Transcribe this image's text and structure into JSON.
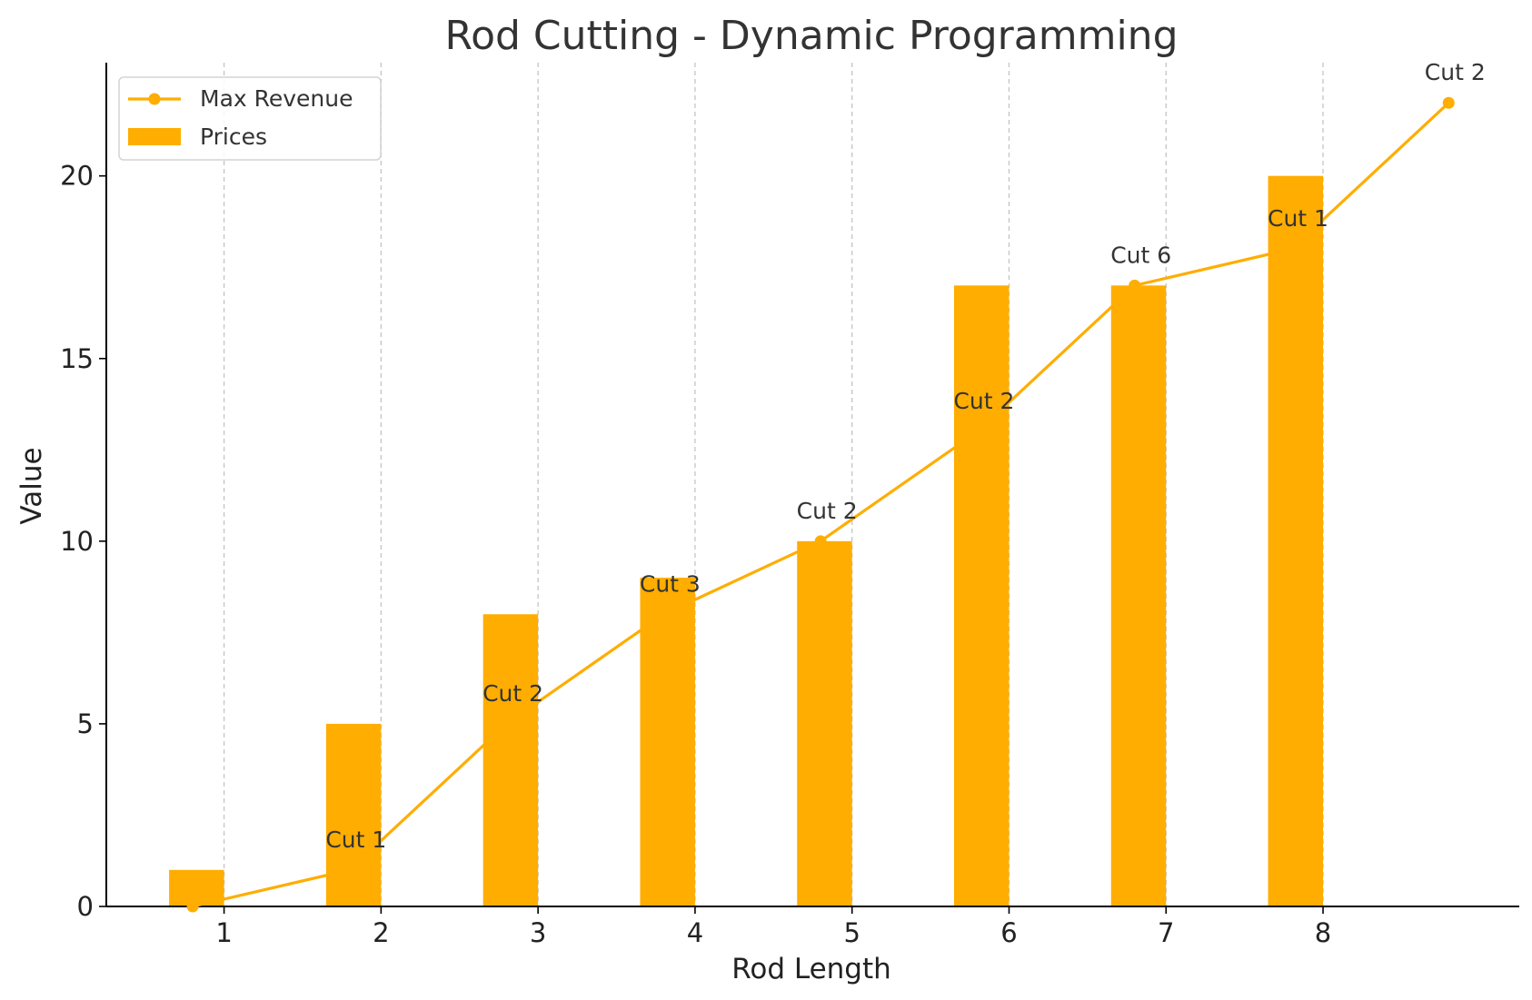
{
  "chart_data": {
    "type": "bar",
    "title": "Rod Cutting - Dynamic Programming",
    "xlabel": "Rod Length",
    "ylabel": "Value",
    "categories": [
      1,
      2,
      3,
      4,
      5,
      6,
      7,
      8
    ],
    "x_ticks": [
      "1",
      "2",
      "3",
      "4",
      "5",
      "6",
      "7",
      "8"
    ],
    "y_ticks": [
      0,
      5,
      10,
      15,
      20
    ],
    "ylim": [
      0,
      23.1
    ],
    "xlim": [
      0.25,
      9.25
    ],
    "grid": "vertical dashed",
    "legend_position": "top-left",
    "series": [
      {
        "name": "Prices",
        "type": "bar",
        "color": "#FFAD00",
        "x": [
          1,
          2,
          3,
          4,
          5,
          6,
          7,
          8
        ],
        "values": [
          1,
          5,
          8,
          9,
          10,
          17,
          17,
          20
        ]
      },
      {
        "name": "Max Revenue",
        "type": "line",
        "color": "#FFAD00",
        "marker": "circle",
        "x": [
          0.8,
          1.8,
          2.8,
          3.8,
          4.8,
          5.8,
          6.8,
          7.8,
          8.8
        ],
        "values": [
          0,
          1,
          5,
          8,
          10,
          13,
          17,
          18,
          22
        ]
      }
    ],
    "annotations": [
      {
        "text": "Cut 1",
        "x": 1.8,
        "y": 1
      },
      {
        "text": "Cut 2",
        "x": 2.8,
        "y": 5
      },
      {
        "text": "Cut 3",
        "x": 3.8,
        "y": 8
      },
      {
        "text": "Cut 2",
        "x": 4.8,
        "y": 10
      },
      {
        "text": "Cut 2",
        "x": 5.8,
        "y": 13
      },
      {
        "text": "Cut 6",
        "x": 6.8,
        "y": 17
      },
      {
        "text": "Cut 1",
        "x": 7.8,
        "y": 18
      },
      {
        "text": "Cut 2",
        "x": 8.8,
        "y": 22
      }
    ]
  }
}
